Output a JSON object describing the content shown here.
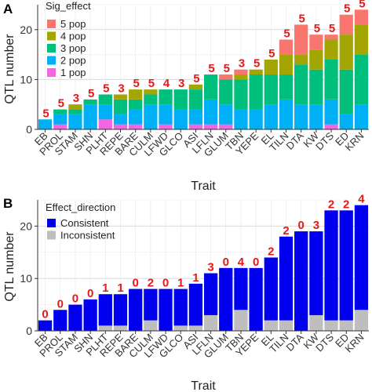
{
  "panels": [
    {
      "letter": "A"
    },
    {
      "letter": "B"
    }
  ],
  "chart_data": [
    {
      "type": "bar",
      "stacked": true,
      "panel_letter": "A",
      "xlabel": "Trait",
      "ylabel": "QTL number",
      "ylim": [
        0,
        25
      ],
      "yticks": [
        0,
        10,
        20
      ],
      "grid": true,
      "legend_title": "Sig_effect",
      "legend_position": "top-left",
      "categories": [
        "EB",
        "PROL",
        "STAM",
        "SHN",
        "PLHT",
        "REPE",
        "BARE",
        "CULM",
        "LFWD",
        "GLCO",
        "ASI",
        "LFLN",
        "GLUM",
        "TBN",
        "YEPE",
        "EL",
        "TILN",
        "DTA",
        "KW",
        "DTS",
        "ED",
        "KRN"
      ],
      "series": [
        {
          "name": "1 pop",
          "color": "#f564e3",
          "values": [
            0,
            1,
            0,
            0,
            2,
            1,
            1,
            0,
            1,
            0,
            1,
            1,
            1,
            0,
            0,
            0,
            0,
            0,
            0,
            1,
            0,
            0
          ]
        },
        {
          "name": "2 pop",
          "color": "#00b0f6",
          "values": [
            2,
            2,
            3,
            5,
            3,
            2,
            3,
            5,
            4,
            4,
            3,
            5,
            4,
            4,
            4,
            5,
            6,
            5,
            5,
            5,
            3,
            5
          ]
        },
        {
          "name": "3 pop",
          "color": "#00bf7d",
          "values": [
            0,
            1,
            1,
            1,
            2,
            3,
            2,
            2,
            3,
            4,
            4,
            5,
            5,
            6,
            7,
            6,
            5,
            8,
            7,
            8,
            9,
            10
          ]
        },
        {
          "name": "4 pop",
          "color": "#a3a500",
          "values": [
            0,
            0,
            1,
            0,
            0,
            1,
            2,
            1,
            0,
            0,
            1,
            0,
            0,
            1,
            1,
            3,
            4,
            2,
            4,
            4,
            7,
            6
          ]
        },
        {
          "name": "5 pop",
          "color": "#f8766d",
          "values": [
            0,
            0,
            0,
            0,
            0,
            0,
            0,
            0,
            0,
            0,
            0,
            0,
            1,
            1,
            0,
            0,
            3,
            6,
            3,
            1,
            4,
            3
          ]
        }
      ],
      "bar_labels": [
        "5",
        "5",
        "3",
        "5",
        "5",
        "3",
        "5",
        "5",
        "4",
        "3",
        "5",
        "5",
        "5",
        "3",
        "5",
        "5",
        "5",
        "5",
        "5",
        "5",
        "5",
        "5"
      ],
      "bar_labels_shift": 1
    },
    {
      "type": "bar",
      "stacked": true,
      "panel_letter": "B",
      "xlabel": "Trait",
      "ylabel": "QTL number",
      "ylim": [
        0,
        25
      ],
      "yticks": [
        0,
        10,
        20
      ],
      "grid": true,
      "legend_title": "Effect_direction",
      "legend_position": "top-left",
      "categories": [
        "EB",
        "PROL",
        "STAM",
        "SHN",
        "PLHT",
        "REPE",
        "BARE",
        "CULM",
        "LFWD",
        "GLCO",
        "ASI",
        "LFLN",
        "GLUM",
        "TBN",
        "YEPE",
        "EL",
        "TILN",
        "DTA",
        "KW",
        "DTS",
        "ED",
        "KRN"
      ],
      "series": [
        {
          "name": "Inconsistent",
          "color": "#bebebe",
          "values": [
            0,
            0,
            0,
            0,
            1,
            1,
            0,
            2,
            0,
            1,
            1,
            3,
            0,
            4,
            0,
            2,
            2,
            0,
            3,
            2,
            2,
            4
          ]
        },
        {
          "name": "Consistent",
          "color": "#0000ee",
          "values": [
            2,
            4,
            5,
            6,
            6,
            6,
            8,
            6,
            8,
            7,
            8,
            8,
            12,
            8,
            12,
            12,
            16,
            19,
            16,
            21,
            21,
            20
          ]
        }
      ],
      "bar_labels": [
        "0",
        "0",
        "0",
        "0",
        "1",
        "1",
        "0",
        "2",
        "0",
        "1",
        "1",
        "3",
        "0",
        "4",
        "0",
        "2",
        "2",
        "0",
        "3",
        "2",
        "2",
        "4"
      ]
    }
  ]
}
